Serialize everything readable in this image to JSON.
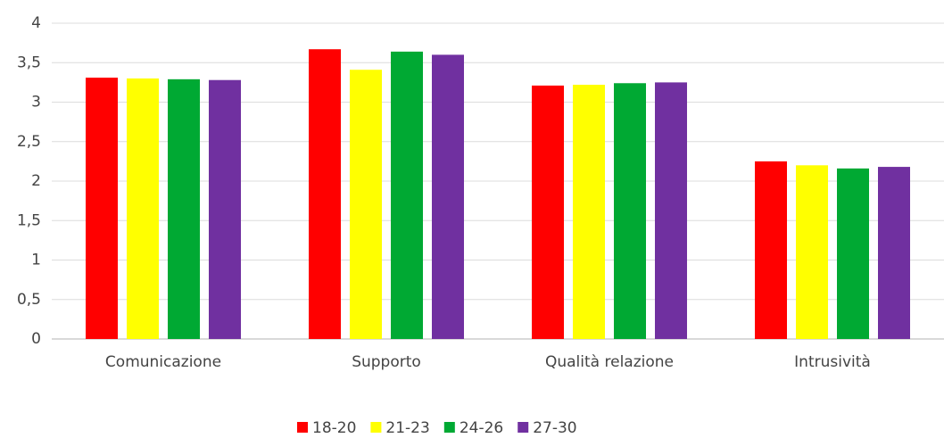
{
  "chart_data": {
    "type": "bar",
    "categories": [
      "Comunicazione",
      "Supporto",
      "Qualità relazione",
      "Intrusività"
    ],
    "series": [
      {
        "name": "18-20",
        "color": "#ff0000",
        "values": [
          3.31,
          3.67,
          3.21,
          2.25
        ]
      },
      {
        "name": "21-23",
        "color": "#ffff00",
        "values": [
          3.3,
          3.41,
          3.22,
          2.2
        ]
      },
      {
        "name": "24-26",
        "color": "#00a933",
        "values": [
          3.29,
          3.64,
          3.24,
          2.16
        ]
      },
      {
        "name": "27-30",
        "color": "#7030a0",
        "values": [
          3.28,
          3.6,
          3.25,
          2.18
        ]
      }
    ],
    "ylim": [
      0,
      4
    ],
    "yticks": [
      0,
      {
        "value": 0.5,
        "label": "0,5"
      },
      1,
      {
        "value": 1.5,
        "label": "1,5"
      },
      2,
      {
        "value": 2.5,
        "label": "2,5"
      },
      3,
      {
        "value": 3.5,
        "label": "3,5"
      },
      4
    ],
    "grid": true,
    "legend": "bottom"
  }
}
